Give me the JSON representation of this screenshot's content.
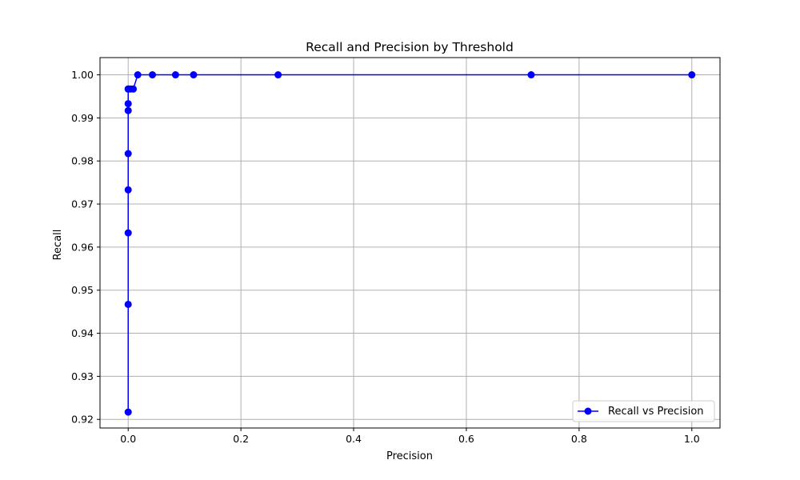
{
  "chart_data": {
    "type": "line",
    "title": "Recall and Precision by Threshold",
    "xlabel": "Precision",
    "ylabel": "Recall",
    "xlim": [
      -0.05,
      1.05
    ],
    "ylim": [
      0.918,
      1.004
    ],
    "xticks": [
      0.0,
      0.2,
      0.4,
      0.6,
      0.8,
      1.0
    ],
    "xtick_labels": [
      "0.0",
      "0.2",
      "0.4",
      "0.6",
      "0.8",
      "1.0"
    ],
    "yticks": [
      0.92,
      0.93,
      0.94,
      0.95,
      0.96,
      0.97,
      0.98,
      0.99,
      1.0
    ],
    "ytick_labels": [
      "0.92",
      "0.93",
      "0.94",
      "0.95",
      "0.96",
      "0.97",
      "0.98",
      "0.99",
      "1.00"
    ],
    "grid": true,
    "legend_position": "lower-right",
    "series": [
      {
        "name": "Recall vs Precision",
        "color": "#0000ff",
        "marker": "circle",
        "x": [
          0.0,
          0.0,
          0.0,
          0.0,
          0.0,
          0.0,
          0.0,
          0.0,
          0.0,
          0.004,
          0.009,
          0.017,
          0.043,
          0.084,
          0.116,
          0.266,
          0.715,
          1.0
        ],
        "y": [
          0.9217,
          0.9467,
          0.9633,
          0.9733,
          0.9817,
          0.9917,
          0.9933,
          0.9967,
          0.9967,
          0.9967,
          0.9967,
          1.0,
          1.0,
          1.0,
          1.0,
          1.0,
          1.0,
          1.0
        ]
      }
    ]
  }
}
